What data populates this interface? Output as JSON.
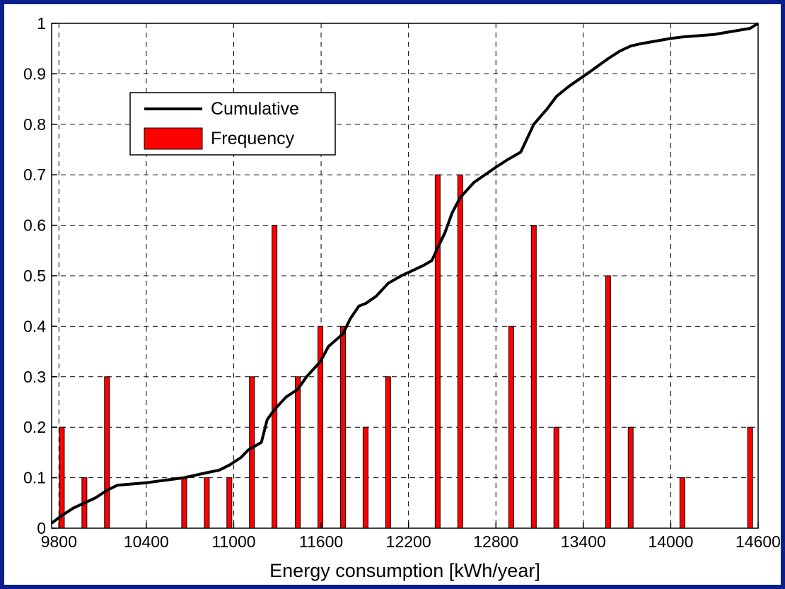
{
  "chart_data": {
    "type": "bar",
    "xlabel": "Energy consumption [kWh/year]",
    "ylabel": "",
    "title": "",
    "xlim": [
      9750,
      14600
    ],
    "ylim": [
      0,
      1
    ],
    "x_ticks": [
      9800,
      10400,
      11000,
      11600,
      12200,
      12800,
      13400,
      14000,
      14600
    ],
    "y_ticks": [
      0,
      0.1,
      0.2,
      0.3,
      0.4,
      0.5,
      0.6,
      0.7,
      0.8,
      0.9,
      1
    ],
    "y_tick_labels": [
      "0",
      "0.1",
      "0.2",
      "0.3",
      "0.4",
      "0.5",
      "0.6",
      "0.7",
      "0.8",
      "0.9",
      "1"
    ],
    "grid": true,
    "legend_position": "top-left",
    "series": [
      {
        "name": "Frequency",
        "type": "bar",
        "color": "#ff0000",
        "x": [
          9820,
          9975,
          10130,
          10660,
          10815,
          10970,
          11125,
          11280,
          11440,
          11595,
          11750,
          11905,
          12060,
          12400,
          12555,
          12905,
          13060,
          13215,
          13570,
          13725,
          14080,
          14545
        ],
        "values": [
          0.2,
          0.1,
          0.3,
          0.1,
          0.1,
          0.1,
          0.3,
          0.6,
          0.3,
          0.4,
          0.4,
          0.2,
          0.3,
          0.7,
          0.7,
          0.4,
          0.6,
          0.2,
          0.5,
          0.2,
          0.1,
          0.2
        ]
      },
      {
        "name": "Cumulative",
        "type": "line",
        "color": "#000000",
        "x": [
          9750,
          9820,
          9900,
          9975,
          10050,
          10130,
          10200,
          10400,
          10660,
          10815,
          10900,
          10970,
          11050,
          11100,
          11190,
          11230,
          11280,
          11360,
          11440,
          11500,
          11595,
          11650,
          11750,
          11800,
          11860,
          11905,
          11980,
          12060,
          12150,
          12300,
          12360,
          12400,
          12450,
          12500,
          12555,
          12650,
          12800,
          12880,
          12970,
          13060,
          13150,
          13215,
          13300,
          13450,
          13570,
          13650,
          13725,
          13800,
          14000,
          14080,
          14300,
          14545,
          14600
        ],
        "values": [
          0.01,
          0.025,
          0.04,
          0.05,
          0.06,
          0.075,
          0.085,
          0.09,
          0.1,
          0.11,
          0.115,
          0.125,
          0.14,
          0.155,
          0.17,
          0.215,
          0.235,
          0.26,
          0.275,
          0.3,
          0.33,
          0.36,
          0.385,
          0.415,
          0.44,
          0.445,
          0.46,
          0.485,
          0.5,
          0.52,
          0.53,
          0.555,
          0.585,
          0.625,
          0.655,
          0.685,
          0.715,
          0.73,
          0.745,
          0.8,
          0.83,
          0.855,
          0.875,
          0.905,
          0.93,
          0.945,
          0.955,
          0.96,
          0.97,
          0.973,
          0.978,
          0.99,
          1.0
        ]
      }
    ]
  }
}
